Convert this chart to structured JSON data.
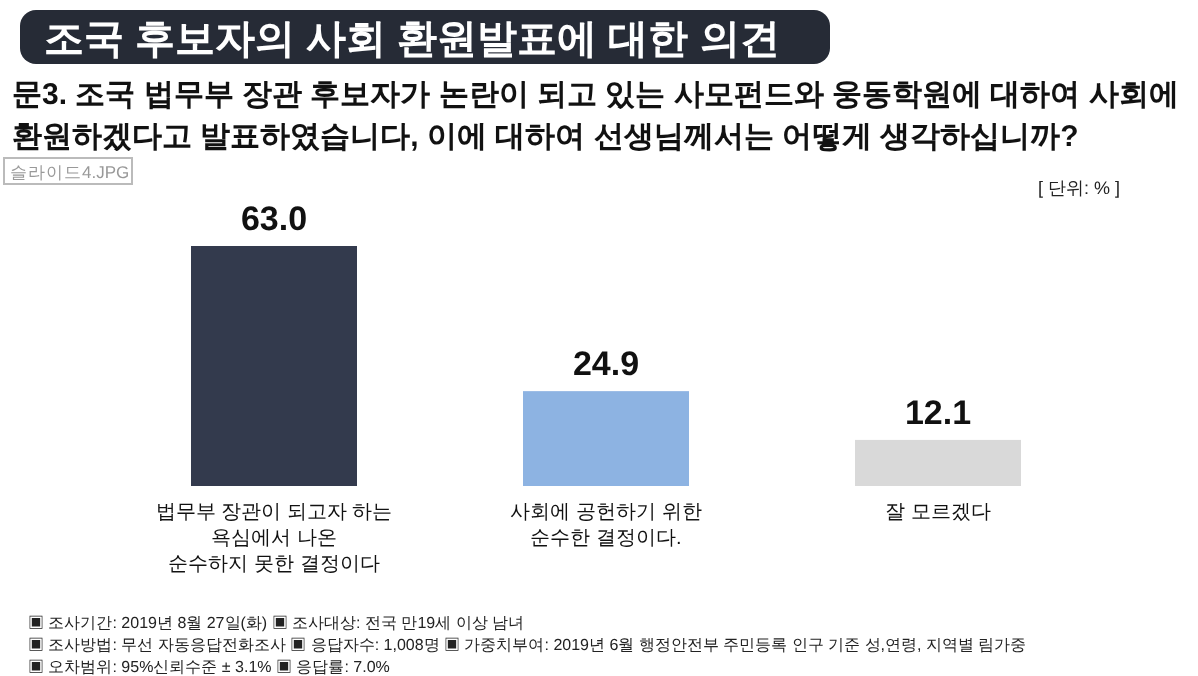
{
  "chart_data": {
    "type": "bar",
    "title": "조국 후보자의 사회 환원발표에 대한 의견",
    "subtitle": "문3. 조국 법무부 장관 후보자가 논란이 되고 있는 사모펀드와 웅동학원에 대하여 사회에 환원하겠다고 발표하였습니다, 이에 대하여 선생님께서는 어떻게 생각하십니까?",
    "categories": [
      "법무부 장관이 되고자 하는\n욕심에서 나온\n순수하지 못한 결정이다",
      "사회에 공헌하기 위한\n순수한 결정이다.",
      "잘 모르겠다"
    ],
    "values": [
      63.0,
      24.9,
      12.1
    ],
    "colors": [
      "#333a4d",
      "#8db3e2",
      "#d9d9d9"
    ],
    "value_labels": [
      "63.0",
      "24.9",
      "12.1"
    ],
    "annotations": [
      "슬라이드4.JPG",
      "[ 단위: % ]",
      "▣ 조사기간: 2019년 8월 27일(화)  ▣ 조사대상: 전국 만19세 이상 남녀",
      "▣ 조사방법: 무선 자동응답전화조사  ▣ 응답자수: 1,008명  ▣ 가중치부여: 2019년 6월 행정안전부 주민등록 인구 기준 성,연령, 지역별 림가중",
      "▣ 오차범위: 95%신뢰수준 ± 3.1%  ▣ 응답률: 7.0%"
    ]
  }
}
